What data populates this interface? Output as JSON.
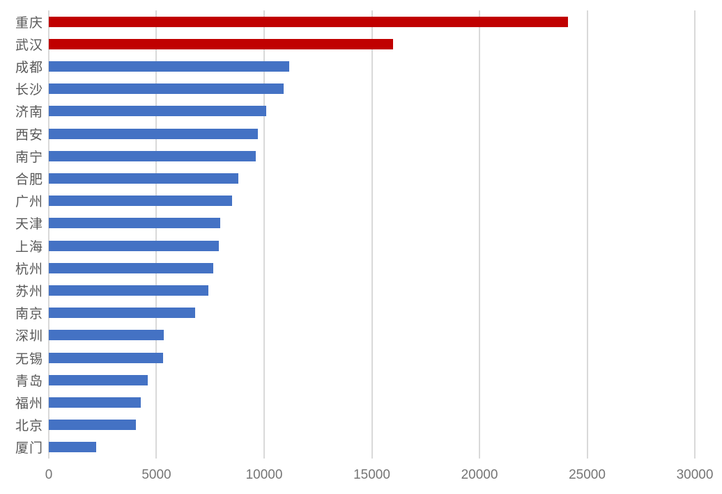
{
  "chart_data": {
    "type": "bar",
    "orientation": "horizontal",
    "title": "",
    "xlabel": "",
    "ylabel": "",
    "categories": [
      "重庆",
      "武汉",
      "成都",
      "长沙",
      "济南",
      "西安",
      "南宁",
      "合肥",
      "广州",
      "天津",
      "上海",
      "杭州",
      "苏州",
      "南京",
      "深圳",
      "无锡",
      "青岛",
      "福州",
      "北京",
      "厦门"
    ],
    "values": [
      24100,
      16000,
      11150,
      10900,
      10100,
      9700,
      9600,
      8800,
      8500,
      7950,
      7900,
      7650,
      7400,
      6800,
      5350,
      5300,
      4600,
      4270,
      4050,
      2200
    ],
    "bar_colors": [
      "#c00000",
      "#c00000",
      "#4472c4",
      "#4472c4",
      "#4472c4",
      "#4472c4",
      "#4472c4",
      "#4472c4",
      "#4472c4",
      "#4472c4",
      "#4472c4",
      "#4472c4",
      "#4472c4",
      "#4472c4",
      "#4472c4",
      "#4472c4",
      "#4472c4",
      "#4472c4",
      "#4472c4",
      "#4472c4"
    ],
    "highlight_color": "#c00000",
    "default_color": "#4472c4",
    "xlim": [
      0,
      30000
    ],
    "x_ticks": [
      "0",
      "5000",
      "10000",
      "15000",
      "20000",
      "25000",
      "30000"
    ],
    "x_tick_values": [
      0,
      5000,
      10000,
      15000,
      20000,
      25000,
      30000
    ],
    "grid": true,
    "gridline_color": "#d9d9d9",
    "category_label_color": "#595959",
    "tick_label_color": "#757575",
    "legend": "none"
  }
}
